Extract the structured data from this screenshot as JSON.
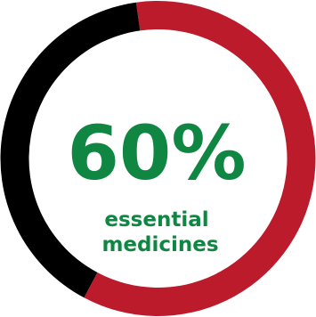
{
  "chart_data": {
    "type": "pie",
    "values": [
      60,
      40
    ],
    "colors": [
      "#bb1b2a",
      "#000000"
    ],
    "center_value": "60%",
    "center_label_lines": [
      "essential",
      "medicines"
    ],
    "text_color": "#0f8743",
    "title": "",
    "legend": "none"
  }
}
